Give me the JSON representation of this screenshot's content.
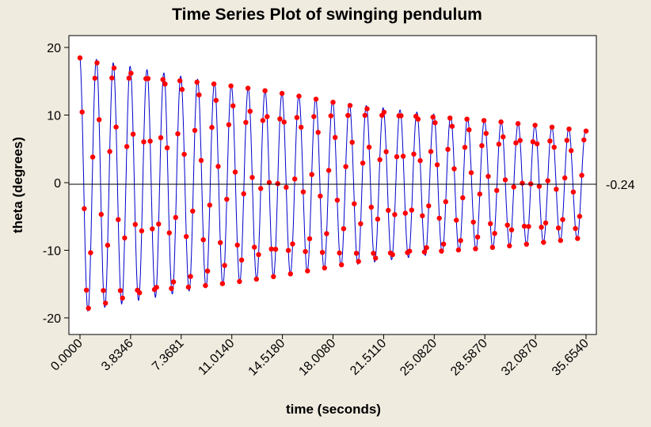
{
  "chart_data": {
    "type": "line",
    "title": "Time Series Plot of swinging pendulum",
    "xlabel": "time (seconds)",
    "ylabel": "theta (degrees)",
    "xlim": [
      0,
      36.4
    ],
    "ylim": [
      -22.5,
      22
    ],
    "x_tick_labels": [
      "0.0000",
      "3.8346",
      "7.3681",
      "11.0140",
      "14.5180",
      "18.0080",
      "21.5110",
      "25.0820",
      "28.5870",
      "32.0870",
      "35.6540"
    ],
    "y_ticks": [
      -20,
      -10,
      0,
      10,
      20
    ],
    "reference_line": {
      "value": -0.24,
      "label": "-0.24"
    },
    "series": [
      {
        "line_color": "#0000cc",
        "marker_color": "#ff0000",
        "sample_interval": 0.15,
        "amplitude_start": 19.0,
        "amplitude_end": 8.0,
        "period": 1.19,
        "points": 239
      }
    ],
    "grid": false
  },
  "colors": {
    "background": "#f0ebdf",
    "plot_background": "#ffffff",
    "line": "#0000cc",
    "marker": "#ff0000"
  }
}
